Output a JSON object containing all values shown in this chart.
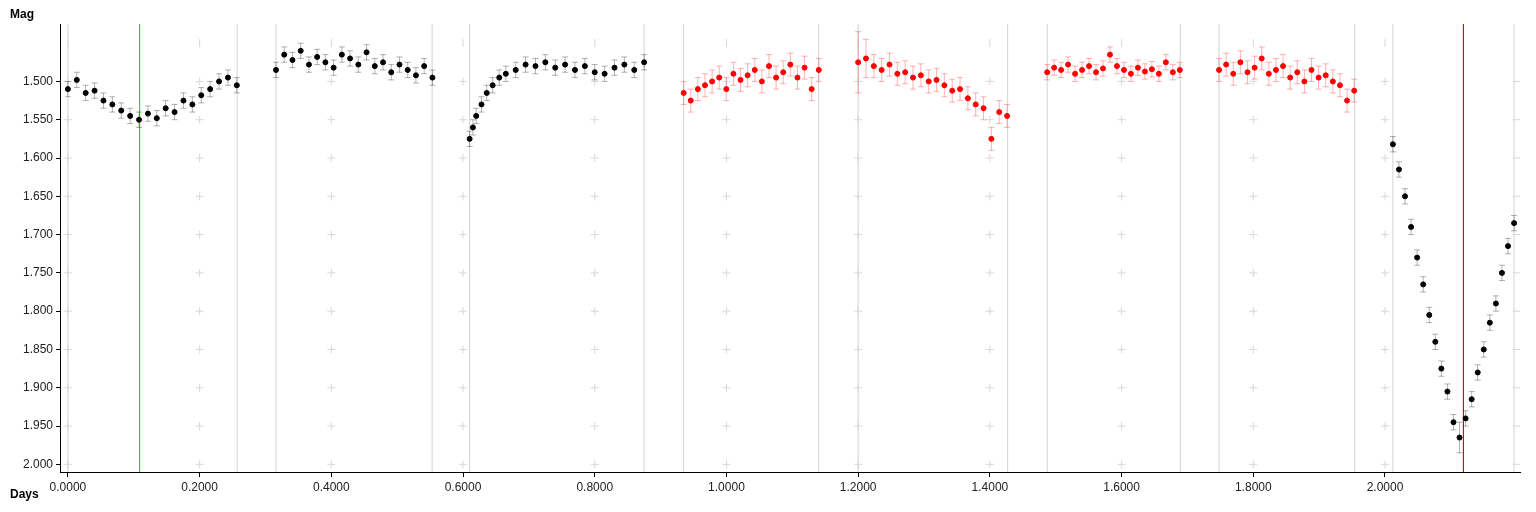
{
  "chart_data": {
    "type": "scatter",
    "xlabel": "Days",
    "ylabel": "Mag",
    "marker": "circle",
    "grid": true,
    "legend": false,
    "xlim": [
      -0.012,
      2.205
    ],
    "ylim": [
      2.01,
      1.425
    ],
    "xticks": [
      {
        "value": 0,
        "label": "0.0000"
      },
      {
        "value": 0.2,
        "label": "0.2000"
      },
      {
        "value": 0.4,
        "label": "0.4000"
      },
      {
        "value": 0.6,
        "label": "0.6000"
      },
      {
        "value": 0.8,
        "label": "0.8000"
      },
      {
        "value": 1.0,
        "label": "1.0000"
      },
      {
        "value": 1.2,
        "label": "1.2000"
      },
      {
        "value": 1.4,
        "label": "1.4000"
      },
      {
        "value": 1.6,
        "label": "1.6000"
      },
      {
        "value": 1.8,
        "label": "1.8000"
      },
      {
        "value": 2.0,
        "label": "2.0000"
      }
    ],
    "yticks": [
      {
        "value": 1.5,
        "label": "1.500"
      },
      {
        "value": 1.55,
        "label": "1.550"
      },
      {
        "value": 1.6,
        "label": "1.600"
      },
      {
        "value": 1.65,
        "label": "1.650"
      },
      {
        "value": 1.7,
        "label": "1.700"
      },
      {
        "value": 1.75,
        "label": "1.750"
      },
      {
        "value": 1.8,
        "label": "1.800"
      },
      {
        "value": 1.85,
        "label": "1.850"
      },
      {
        "value": 1.9,
        "label": "1.900"
      },
      {
        "value": 1.95,
        "label": "1.950"
      },
      {
        "value": 2.0,
        "label": "2.000"
      }
    ],
    "ref_lines": [
      {
        "axis": "x",
        "value": 0.0,
        "color": "#d3d3d3"
      },
      {
        "axis": "x",
        "value": 0.257,
        "color": "#d3d3d3"
      },
      {
        "axis": "x",
        "value": 0.316,
        "color": "#d3d3d3"
      },
      {
        "axis": "x",
        "value": 0.553,
        "color": "#d3d3d3"
      },
      {
        "axis": "x",
        "value": 0.61,
        "color": "#d3d3d3"
      },
      {
        "axis": "x",
        "value": 0.875,
        "color": "#d3d3d3"
      },
      {
        "axis": "x",
        "value": 0.935,
        "color": "#d3d3d3"
      },
      {
        "axis": "x",
        "value": 1.14,
        "color": "#d3d3d3"
      },
      {
        "axis": "x",
        "value": 1.2,
        "color": "#d3d3d3"
      },
      {
        "axis": "x",
        "value": 1.427,
        "color": "#d3d3d3"
      },
      {
        "axis": "x",
        "value": 1.487,
        "color": "#d3d3d3"
      },
      {
        "axis": "x",
        "value": 1.689,
        "color": "#d3d3d3"
      },
      {
        "axis": "x",
        "value": 1.748,
        "color": "#d3d3d3"
      },
      {
        "axis": "x",
        "value": 1.954,
        "color": "#d3d3d3"
      },
      {
        "axis": "x",
        "value": 2.012,
        "color": "#d3d3d3"
      },
      {
        "axis": "x",
        "value": 2.196,
        "color": "#d3d3d3"
      },
      {
        "axis": "x",
        "value": 0.109,
        "color": "#00cc00"
      },
      {
        "axis": "x",
        "value": 2.119,
        "color": "#8b0000"
      }
    ],
    "series": [
      {
        "color": "#000000",
        "x": [
          0.0,
          0.0135,
          0.027,
          0.0405,
          0.054,
          0.0675,
          0.081,
          0.0945,
          0.108,
          0.1215,
          0.135,
          0.1485,
          0.162,
          0.1755,
          0.189,
          0.2025,
          0.216,
          0.2295,
          0.243,
          0.2565,
          0.316,
          0.3285,
          0.341,
          0.3535,
          0.366,
          0.3785,
          0.391,
          0.4035,
          0.416,
          0.4285,
          0.441,
          0.4535,
          0.466,
          0.4785,
          0.491,
          0.5035,
          0.516,
          0.5285,
          0.541,
          0.5535,
          0.61,
          0.615,
          0.62,
          0.628,
          0.636,
          0.645,
          0.655,
          0.665,
          0.68,
          0.695,
          0.71,
          0.725,
          0.74,
          0.755,
          0.77,
          0.785,
          0.8,
          0.815,
          0.83,
          0.845,
          0.86,
          0.875,
          2.012,
          2.0212,
          2.0304,
          2.0396,
          2.0488,
          2.058,
          2.0672,
          2.0764,
          2.0856,
          2.0948,
          2.104,
          2.1132,
          2.1224,
          2.1316,
          2.1408,
          2.15,
          2.1592,
          2.1684,
          2.1776,
          2.1868,
          2.196
        ],
        "values": [
          1.51,
          1.498,
          1.515,
          1.512,
          1.525,
          1.53,
          1.538,
          1.545,
          1.55,
          1.542,
          1.548,
          1.535,
          1.54,
          1.525,
          1.53,
          1.518,
          1.51,
          1.5,
          1.495,
          1.505,
          1.485,
          1.465,
          1.472,
          1.46,
          1.478,
          1.468,
          1.475,
          1.482,
          1.465,
          1.47,
          1.478,
          1.462,
          1.48,
          1.475,
          1.488,
          1.478,
          1.485,
          1.492,
          1.48,
          1.495,
          1.575,
          1.56,
          1.545,
          1.53,
          1.515,
          1.505,
          1.495,
          1.49,
          1.485,
          1.478,
          1.48,
          1.475,
          1.482,
          1.478,
          1.485,
          1.48,
          1.488,
          1.49,
          1.482,
          1.478,
          1.485,
          1.475,
          1.582,
          1.615,
          1.65,
          1.69,
          1.73,
          1.765,
          1.805,
          1.84,
          1.875,
          1.905,
          1.945,
          1.965,
          1.94,
          1.915,
          1.88,
          1.85,
          1.815,
          1.79,
          1.75,
          1.715,
          1.685
        ],
        "errors": [
          0.01,
          0.01,
          0.01,
          0.01,
          0.01,
          0.01,
          0.01,
          0.01,
          0.01,
          0.01,
          0.01,
          0.01,
          0.01,
          0.01,
          0.01,
          0.01,
          0.01,
          0.01,
          0.01,
          0.01,
          0.01,
          0.01,
          0.01,
          0.01,
          0.01,
          0.01,
          0.01,
          0.01,
          0.01,
          0.01,
          0.01,
          0.01,
          0.01,
          0.01,
          0.01,
          0.01,
          0.01,
          0.01,
          0.01,
          0.01,
          0.01,
          0.01,
          0.01,
          0.01,
          0.01,
          0.01,
          0.01,
          0.01,
          0.01,
          0.01,
          0.01,
          0.01,
          0.01,
          0.01,
          0.01,
          0.01,
          0.01,
          0.01,
          0.01,
          0.01,
          0.01,
          0.01,
          0.01,
          0.01,
          0.01,
          0.01,
          0.01,
          0.01,
          0.01,
          0.01,
          0.01,
          0.01,
          0.01,
          0.02,
          0.01,
          0.01,
          0.01,
          0.01,
          0.01,
          0.01,
          0.01,
          0.01,
          0.01
        ]
      },
      {
        "color": "#ff0000",
        "x": [
          0.935,
          0.9458,
          0.9566,
          0.9674,
          0.9782,
          0.989,
          0.9998,
          1.0106,
          1.0214,
          1.0322,
          1.043,
          1.0538,
          1.0646,
          1.0754,
          1.0862,
          1.097,
          1.1078,
          1.1186,
          1.1294,
          1.1402,
          1.2,
          1.2119,
          1.2238,
          1.2357,
          1.2476,
          1.2595,
          1.2714,
          1.2833,
          1.2952,
          1.3071,
          1.319,
          1.3309,
          1.3428,
          1.3547,
          1.3666,
          1.3785,
          1.3904,
          1.4023,
          1.4142,
          1.4261,
          1.487,
          1.4976,
          1.5082,
          1.5188,
          1.5294,
          1.54,
          1.5506,
          1.5612,
          1.5718,
          1.5824,
          1.593,
          1.6036,
          1.6142,
          1.6248,
          1.6354,
          1.646,
          1.6566,
          1.6672,
          1.6778,
          1.6884,
          1.748,
          1.7588,
          1.7696,
          1.7804,
          1.7912,
          1.802,
          1.8128,
          1.8236,
          1.8344,
          1.8452,
          1.856,
          1.8668,
          1.8776,
          1.8884,
          1.8992,
          1.91,
          1.9208,
          1.9316,
          1.9424,
          1.9532
        ],
        "values": [
          1.515,
          1.525,
          1.51,
          1.505,
          1.5,
          1.495,
          1.51,
          1.49,
          1.498,
          1.492,
          1.485,
          1.5,
          1.48,
          1.495,
          1.488,
          1.478,
          1.495,
          1.482,
          1.51,
          1.485,
          1.475,
          1.47,
          1.48,
          1.485,
          1.478,
          1.49,
          1.488,
          1.495,
          1.492,
          1.5,
          1.498,
          1.505,
          1.512,
          1.51,
          1.522,
          1.53,
          1.535,
          1.575,
          1.54,
          1.545,
          1.488,
          1.482,
          1.485,
          1.478,
          1.49,
          1.485,
          1.48,
          1.488,
          1.483,
          1.465,
          1.48,
          1.485,
          1.49,
          1.482,
          1.487,
          1.484,
          1.49,
          1.475,
          1.488,
          1.485,
          1.485,
          1.478,
          1.49,
          1.475,
          1.488,
          1.482,
          1.47,
          1.49,
          1.485,
          1.48,
          1.495,
          1.488,
          1.5,
          1.485,
          1.495,
          1.492,
          1.5,
          1.505,
          1.525,
          1.512
        ],
        "errors": [
          0.015,
          0.015,
          0.015,
          0.015,
          0.015,
          0.015,
          0.015,
          0.015,
          0.015,
          0.015,
          0.015,
          0.015,
          0.015,
          0.015,
          0.015,
          0.015,
          0.015,
          0.015,
          0.015,
          0.015,
          0.04,
          0.025,
          0.015,
          0.015,
          0.015,
          0.015,
          0.015,
          0.015,
          0.015,
          0.015,
          0.015,
          0.015,
          0.015,
          0.015,
          0.015,
          0.015,
          0.015,
          0.015,
          0.015,
          0.015,
          0.01,
          0.01,
          0.01,
          0.01,
          0.01,
          0.01,
          0.01,
          0.01,
          0.01,
          0.01,
          0.01,
          0.01,
          0.01,
          0.01,
          0.01,
          0.01,
          0.01,
          0.01,
          0.01,
          0.01,
          0.015,
          0.015,
          0.015,
          0.015,
          0.015,
          0.015,
          0.015,
          0.015,
          0.015,
          0.015,
          0.015,
          0.015,
          0.015,
          0.015,
          0.015,
          0.015,
          0.015,
          0.015,
          0.015,
          0.015
        ]
      }
    ]
  }
}
